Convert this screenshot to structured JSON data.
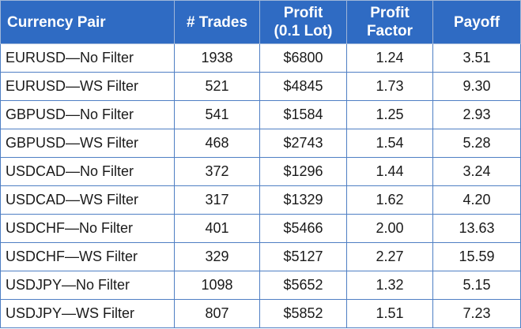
{
  "table": {
    "headers": {
      "pair": "Currency Pair",
      "trades": "# Trades",
      "profit_line1": "Profit",
      "profit_line2": "(0.1 Lot)",
      "factor_line1": "Profit",
      "factor_line2": "Factor",
      "payoff": "Payoff"
    },
    "rows": [
      {
        "pair": "EURUSD—No Filter",
        "trades": "1938",
        "profit": "$6800",
        "factor": "1.24",
        "payoff": "3.51"
      },
      {
        "pair": "EURUSD—WS Filter",
        "trades": "521",
        "profit": "$4845",
        "factor": "1.73",
        "payoff": "9.30"
      },
      {
        "pair": "GBPUSD—No Filter",
        "trades": "541",
        "profit": "$1584",
        "factor": "1.25",
        "payoff": "2.93"
      },
      {
        "pair": "GBPUSD—WS Filter",
        "trades": "468",
        "profit": "$2743",
        "factor": "1.54",
        "payoff": "5.28"
      },
      {
        "pair": "USDCAD—No Filter",
        "trades": "372",
        "profit": "$1296",
        "factor": "1.44",
        "payoff": "3.24"
      },
      {
        "pair": "USDCAD—WS Filter",
        "trades": "317",
        "profit": "$1329",
        "factor": "1.62",
        "payoff": "4.20"
      },
      {
        "pair": "USDCHF—No Filter",
        "trades": "401",
        "profit": "$5466",
        "factor": "2.00",
        "payoff": "13.63"
      },
      {
        "pair": "USDCHF—WS Filter",
        "trades": "329",
        "profit": "$5127",
        "factor": "2.27",
        "payoff": "15.59"
      },
      {
        "pair": "USDJPY—No Filter",
        "trades": "1098",
        "profit": "$5652",
        "factor": "1.32",
        "payoff": "5.15"
      },
      {
        "pair": "USDJPY—WS Filter",
        "trades": "807",
        "profit": "$5852",
        "factor": "1.51",
        "payoff": "7.23"
      }
    ]
  },
  "colors": {
    "header_background": "#2f6bc3",
    "header_text": "#ffffff",
    "grid_line": "#4f7fc4"
  }
}
